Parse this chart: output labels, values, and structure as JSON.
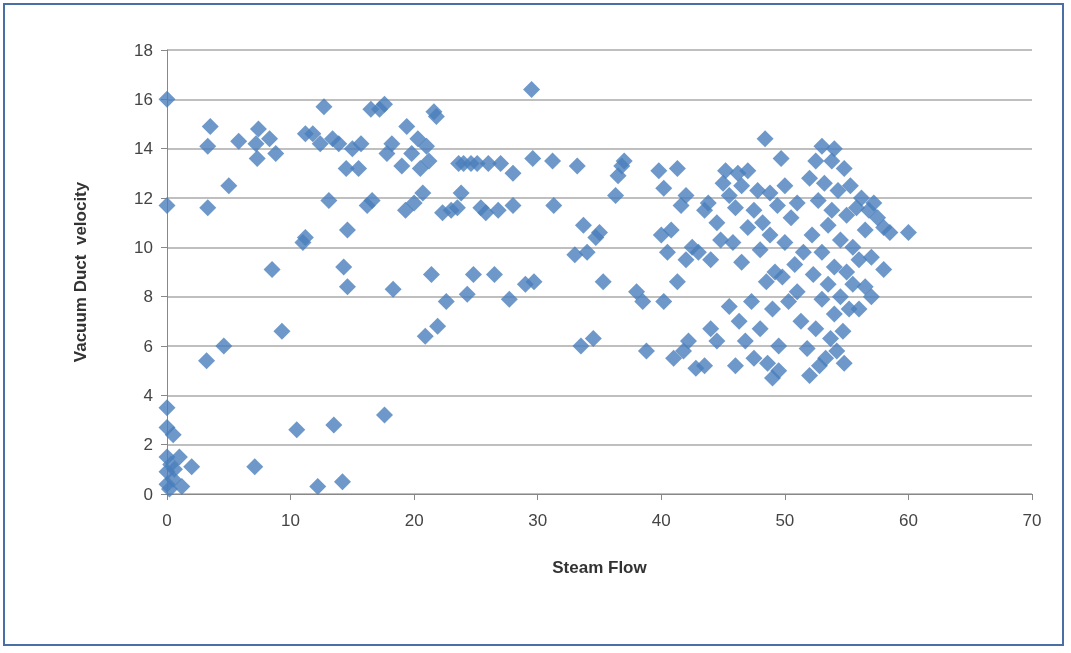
{
  "chart_data": {
    "type": "scatter",
    "xlabel": "Steam Flow",
    "ylabel": "Vacuum Duct  velocity",
    "marker": "diamond",
    "grid": "y",
    "color": "#4a7ebb",
    "xlim": [
      0,
      70
    ],
    "xticks": [
      0,
      10,
      20,
      30,
      40,
      50,
      60,
      70
    ],
    "ylim": [
      0,
      18
    ],
    "yticks": [
      0,
      2,
      4,
      6,
      8,
      10,
      12,
      14,
      16,
      18
    ],
    "x": [
      0,
      0,
      0,
      0,
      0.5,
      0,
      0.3,
      0,
      0.5,
      0,
      1,
      1.2,
      2,
      0.6,
      0.2,
      3.3,
      3.3,
      3.5,
      3.2,
      4.6,
      5,
      5.8,
      7.2,
      7.4,
      7.3,
      8.3,
      8.8,
      8.5,
      9.3,
      7.1,
      10.5,
      11,
      11.2,
      11.2,
      11.8,
      12.4,
      12.7,
      12.2,
      13.1,
      13.4,
      13.5,
      13.9,
      14.2,
      14.3,
      14.6,
      14.6,
      14.5,
      15,
      15.5,
      15.7,
      16.2,
      16.6,
      16.5,
      17.2,
      17.6,
      17.6,
      17.8,
      18.2,
      18.3,
      19,
      19.3,
      19.4,
      19.8,
      20,
      20.3,
      20.5,
      20.7,
      20.9,
      21,
      21.2,
      21.4,
      21.6,
      21.8,
      21.9,
      22.3,
      22.6,
      23,
      23.5,
      23.6,
      23.8,
      24,
      24.3,
      24.6,
      24.8,
      25.1,
      25.4,
      25.8,
      26,
      26.5,
      26.8,
      27,
      27.7,
      28,
      28,
      29,
      29.5,
      29.6,
      29.7,
      31.2,
      31.3,
      33.2,
      33,
      33.5,
      33.7,
      34,
      34.5,
      34.7,
      35,
      35.3,
      36.3,
      36.5,
      36.8,
      37,
      38,
      38.5,
      38.8,
      39.8,
      40,
      40.2,
      40.2,
      40.5,
      40.8,
      41,
      41.3,
      41.3,
      41.6,
      41.8,
      42,
      42,
      42.5,
      42.2,
      42.8,
      43,
      43.5,
      43.5,
      43.8,
      44,
      44,
      44.5,
      44.5,
      44.8,
      45,
      45.2,
      45.5,
      45.5,
      45.8,
      46,
      46,
      46.2,
      46.3,
      46.5,
      46.5,
      46.8,
      47,
      47,
      47.3,
      47.5,
      47.5,
      47.8,
      48,
      48,
      48.2,
      48.4,
      48.5,
      48.6,
      48.8,
      48.8,
      49,
      49,
      49.2,
      49.4,
      49.5,
      49.5,
      49.7,
      49.8,
      50,
      50,
      50.3,
      50.5,
      50.8,
      51,
      51,
      51.3,
      51.5,
      51.8,
      52,
      52,
      52.2,
      52.3,
      52.5,
      52.5,
      52.7,
      52.8,
      53,
      53,
      53,
      53.2,
      53.3,
      53.5,
      53.5,
      53.7,
      53.8,
      53.8,
      54,
      54,
      54,
      54.2,
      54.3,
      54.5,
      54.5,
      54.7,
      54.8,
      54.8,
      55,
      55,
      55.2,
      55.3,
      55.5,
      55.5,
      55.8,
      56,
      56,
      56.2,
      56.5,
      56.5,
      56.8,
      57,
      57,
      57.2,
      57.5,
      58,
      58,
      58.5,
      60
    ],
    "values": [
      16,
      11.7,
      3.5,
      2.7,
      2.4,
      1.5,
      1.2,
      0.9,
      0.6,
      0.4,
      1.5,
      0.3,
      1.1,
      1,
      0.2,
      11.6,
      14.1,
      14.9,
      5.4,
      6,
      12.5,
      14.3,
      14.2,
      14.8,
      13.6,
      14.4,
      13.8,
      9.1,
      6.6,
      1.1,
      2.6,
      10.2,
      10.4,
      14.6,
      14.6,
      14.2,
      15.7,
      0.3,
      11.9,
      14.4,
      2.8,
      14.2,
      0.5,
      9.2,
      8.4,
      10.7,
      13.2,
      14,
      13.2,
      14.2,
      11.7,
      11.9,
      15.6,
      15.6,
      3.2,
      15.8,
      13.8,
      14.2,
      8.3,
      13.3,
      11.5,
      14.9,
      13.8,
      11.8,
      14.4,
      13.2,
      12.2,
      6.4,
      14.1,
      13.5,
      8.9,
      15.5,
      15.3,
      6.8,
      11.4,
      7.8,
      11.5,
      11.6,
      13.4,
      12.2,
      13.4,
      8.1,
      13.4,
      8.9,
      13.4,
      11.6,
      11.4,
      13.4,
      8.9,
      11.5,
      13.4,
      7.9,
      11.7,
      13,
      8.5,
      16.4,
      13.6,
      8.6,
      13.5,
      11.7,
      13.3,
      9.7,
      6,
      10.9,
      9.8,
      6.3,
      10.4,
      10.6,
      8.6,
      12.1,
      12.9,
      13.3,
      13.5,
      8.2,
      7.8,
      5.8,
      13.1,
      10.5,
      12.4,
      7.8,
      9.8,
      10.7,
      5.5,
      8.6,
      13.2,
      11.7,
      5.8,
      12.1,
      9.5,
      10,
      6.2,
      5.1,
      9.8,
      5.2,
      11.5,
      11.8,
      6.7,
      9.5,
      11,
      6.2,
      10.3,
      12.6,
      13.1,
      7.6,
      12.1,
      10.2,
      5.2,
      11.6,
      13,
      7,
      9.4,
      12.5,
      6.2,
      13.1,
      10.8,
      7.8,
      11.5,
      5.5,
      12.3,
      9.9,
      6.7,
      11,
      14.4,
      8.6,
      5.3,
      10.5,
      12.2,
      4.7,
      7.5,
      9,
      11.7,
      6,
      5,
      13.6,
      8.8,
      12.5,
      10.2,
      7.8,
      11.2,
      9.3,
      8.2,
      11.8,
      7,
      9.8,
      5.9,
      12.8,
      4.8,
      10.5,
      8.9,
      13.5,
      6.7,
      11.9,
      5.2,
      7.9,
      9.8,
      14.1,
      12.6,
      5.5,
      10.9,
      8.5,
      6.3,
      13.5,
      11.5,
      9.2,
      7.3,
      14,
      5.8,
      12.3,
      10.3,
      8,
      6.6,
      13.2,
      5.3,
      11.3,
      9,
      7.5,
      12.5,
      10,
      8.5,
      11.6,
      9.5,
      7.5,
      12,
      10.7,
      8.4,
      11.5,
      9.6,
      8,
      11.8,
      11.2,
      10.8,
      9.1,
      10.6,
      10.6
    ]
  }
}
